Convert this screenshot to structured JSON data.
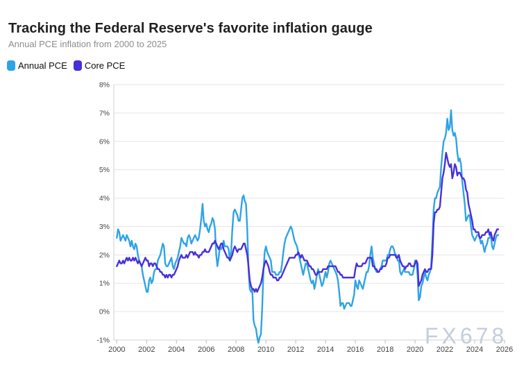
{
  "header": {
    "title": "Tracking the Federal Reserve's favorite inflation gauge",
    "subtitle": "Annual PCE inflation from 2000 to 2025"
  },
  "watermark": "FX678",
  "colors": {
    "annual_pce": "#2EA3E6",
    "core_pce": "#4630D9",
    "grid": "#e5e5e5",
    "axis": "#cfcfcf"
  },
  "chart_data": {
    "type": "line",
    "title": "Tracking the Federal Reserve's favorite inflation gauge",
    "subtitle": "Annual PCE inflation from 2000 to 2025",
    "xlabel": "",
    "ylabel": "",
    "grid": "horizontal",
    "legend_position": "top-left",
    "xlim": [
      2000,
      2026
    ],
    "ylim": [
      -1,
      8
    ],
    "x_ticks": [
      2000,
      2002,
      2004,
      2006,
      2008,
      2010,
      2012,
      2014,
      2016,
      2018,
      2020,
      2022,
      2024,
      2026
    ],
    "y_ticks": [
      8,
      7,
      6,
      5,
      4,
      3,
      2,
      1,
      0,
      -1
    ],
    "y_tick_suffix": "%",
    "x_start_year": 2000,
    "x_interval_months": 1,
    "series": [
      {
        "name": "Annual PCE",
        "color": "#2EA3E6",
        "values": [
          2.6,
          2.9,
          2.8,
          2.5,
          2.6,
          2.7,
          2.6,
          2.5,
          2.7,
          2.6,
          2.5,
          2.3,
          2.5,
          2.3,
          2.2,
          2.4,
          2.3,
          2.0,
          1.8,
          1.7,
          1.6,
          1.3,
          1.1,
          0.9,
          0.7,
          0.7,
          1.1,
          1.2,
          1.0,
          1.1,
          1.4,
          1.5,
          1.5,
          1.8,
          1.9,
          2.0,
          2.2,
          2.4,
          2.3,
          1.7,
          1.6,
          1.6,
          1.7,
          1.8,
          1.9,
          1.6,
          1.5,
          1.7,
          1.8,
          1.9,
          2.1,
          2.3,
          2.6,
          2.5,
          2.4,
          2.4,
          2.3,
          2.6,
          2.7,
          2.6,
          2.4,
          2.5,
          2.6,
          2.7,
          2.6,
          2.5,
          2.6,
          2.9,
          3.3,
          3.8,
          3.2,
          3.0,
          3.1,
          2.9,
          2.8,
          3.0,
          3.1,
          3.3,
          3.2,
          2.9,
          2.0,
          1.6,
          1.9,
          2.3,
          2.2,
          2.3,
          2.5,
          2.3,
          2.3,
          2.3,
          2.2,
          1.8,
          2.1,
          2.9,
          3.5,
          3.6,
          3.5,
          3.4,
          3.2,
          3.2,
          3.6,
          4.0,
          4.1,
          3.9,
          3.8,
          2.9,
          1.5,
          0.8,
          0.7,
          0.8,
          -0.3,
          -0.5,
          -0.6,
          -0.9,
          -1.1,
          -0.9,
          -0.8,
          0.1,
          1.4,
          2.1,
          2.3,
          2.1,
          2.0,
          1.9,
          1.8,
          1.4,
          1.4,
          1.4,
          1.3,
          1.3,
          1.3,
          1.4,
          1.4,
          1.7,
          2.1,
          2.4,
          2.6,
          2.7,
          2.8,
          2.9,
          3.0,
          2.9,
          2.7,
          2.5,
          2.4,
          2.3,
          2.1,
          1.9,
          1.7,
          1.5,
          1.3,
          1.5,
          1.7,
          1.7,
          1.5,
          1.3,
          1.1,
          1.0,
          1.1,
          0.8,
          1.0,
          1.3,
          1.5,
          1.3,
          1.1,
          0.9,
          1.0,
          1.2,
          1.4,
          1.2,
          1.4,
          1.7,
          1.8,
          1.7,
          1.6,
          1.5,
          1.4,
          1.3,
          1.1,
          0.7,
          0.2,
          0.3,
          0.3,
          0.1,
          0.2,
          0.3,
          0.3,
          0.3,
          0.2,
          0.2,
          0.4,
          0.6,
          1.1,
          0.9,
          0.8,
          1.1,
          1.0,
          0.9,
          0.8,
          1.0,
          1.2,
          1.4,
          1.4,
          1.6,
          2.0,
          2.3,
          1.9,
          1.7,
          1.5,
          1.4,
          1.4,
          1.4,
          1.5,
          1.6,
          1.8,
          1.8,
          1.8,
          1.8,
          2.0,
          2.0,
          2.2,
          2.3,
          2.3,
          2.2,
          2.0,
          2.0,
          1.8,
          1.8,
          1.4,
          1.3,
          1.4,
          1.5,
          1.4,
          1.4,
          1.4,
          1.4,
          1.3,
          1.3,
          1.3,
          1.5,
          1.8,
          1.8,
          1.3,
          0.4,
          0.5,
          0.9,
          1.0,
          1.2,
          1.4,
          1.2,
          1.1,
          1.3,
          1.4,
          1.6,
          2.5,
          3.6,
          4.0,
          4.0,
          4.2,
          4.3,
          4.4,
          5.1,
          5.6,
          6.0,
          6.1,
          6.3,
          6.8,
          6.4,
          6.5,
          7.1,
          6.4,
          6.2,
          6.3,
          6.1,
          5.6,
          5.3,
          5.4,
          5.2,
          4.6,
          4.2,
          3.8,
          3.2,
          3.3,
          3.4,
          3.4,
          3.0,
          2.7,
          2.6,
          2.5,
          2.6,
          2.7,
          2.7,
          2.6,
          2.4,
          2.5,
          2.3,
          2.1,
          2.3,
          2.4,
          2.6,
          2.6,
          2.7,
          2.3,
          2.2,
          2.4,
          2.6,
          2.7,
          2.7
        ]
      },
      {
        "name": "Core PCE",
        "color": "#4630D9",
        "values": [
          1.6,
          1.7,
          1.8,
          1.7,
          1.7,
          1.8,
          1.7,
          1.8,
          1.9,
          1.8,
          1.9,
          1.8,
          1.8,
          1.9,
          1.8,
          1.9,
          1.8,
          1.7,
          1.8,
          1.7,
          1.6,
          1.7,
          1.8,
          1.9,
          1.8,
          1.8,
          1.6,
          1.7,
          1.7,
          1.6,
          1.7,
          1.7,
          1.6,
          1.5,
          1.5,
          1.4,
          1.4,
          1.3,
          1.3,
          1.2,
          1.3,
          1.2,
          1.3,
          1.3,
          1.2,
          1.3,
          1.3,
          1.4,
          1.5,
          1.6,
          1.8,
          1.9,
          2.0,
          1.9,
          1.9,
          1.9,
          2.0,
          1.9,
          2.0,
          2.1,
          2.1,
          2.1,
          2.0,
          2.1,
          2.0,
          2.0,
          1.9,
          2.0,
          2.0,
          2.1,
          2.1,
          2.2,
          2.1,
          2.1,
          2.1,
          2.2,
          2.3,
          2.4,
          2.4,
          2.5,
          2.4,
          2.3,
          2.2,
          2.3,
          2.4,
          2.4,
          2.2,
          2.1,
          2.0,
          1.9,
          1.9,
          1.8,
          1.9,
          2.0,
          2.2,
          2.3,
          2.2,
          2.1,
          2.2,
          2.2,
          2.2,
          2.3,
          2.4,
          2.4,
          2.2,
          2.0,
          1.6,
          1.1,
          0.9,
          0.8,
          0.8,
          0.7,
          0.8,
          0.7,
          0.8,
          0.9,
          1.0,
          1.2,
          1.5,
          1.7,
          1.8,
          1.7,
          1.6,
          1.4,
          1.3,
          1.3,
          1.2,
          1.2,
          1.2,
          1.1,
          1.1,
          1.2,
          1.2,
          1.3,
          1.4,
          1.5,
          1.6,
          1.7,
          1.8,
          1.9,
          1.9,
          1.9,
          1.9,
          1.9,
          2.0,
          2.0,
          2.1,
          2.0,
          1.9,
          2.0,
          1.9,
          1.8,
          1.8,
          1.8,
          1.7,
          1.6,
          1.6,
          1.5,
          1.5,
          1.4,
          1.3,
          1.3,
          1.4,
          1.4,
          1.4,
          1.4,
          1.5,
          1.5,
          1.5,
          1.5,
          1.6,
          1.6,
          1.6,
          1.6,
          1.6,
          1.6,
          1.6,
          1.5,
          1.4,
          1.4,
          1.3,
          1.3,
          1.2,
          1.2,
          1.2,
          1.2,
          1.2,
          1.2,
          1.2,
          1.2,
          1.2,
          1.2,
          1.5,
          1.7,
          1.6,
          1.6,
          1.6,
          1.6,
          1.7,
          1.7,
          1.7,
          1.8,
          1.9,
          1.9,
          1.9,
          1.9,
          1.6,
          1.6,
          1.5,
          1.5,
          1.4,
          1.4,
          1.5,
          1.5,
          1.6,
          1.6,
          1.6,
          1.7,
          1.9,
          1.9,
          2.0,
          2.0,
          2.0,
          2.0,
          2.0,
          1.9,
          1.9,
          2.0,
          1.8,
          1.7,
          1.6,
          1.6,
          1.5,
          1.6,
          1.6,
          1.7,
          1.7,
          1.6,
          1.6,
          1.6,
          1.7,
          1.8,
          1.7,
          0.9,
          1.0,
          1.1,
          1.3,
          1.4,
          1.5,
          1.4,
          1.4,
          1.5,
          1.5,
          1.5,
          2.0,
          3.1,
          3.5,
          3.5,
          3.6,
          3.6,
          3.7,
          4.2,
          4.7,
          4.9,
          5.2,
          5.6,
          5.4,
          5.2,
          5.1,
          5.2,
          4.7,
          4.9,
          5.2,
          5.1,
          4.8,
          4.9,
          4.9,
          4.8,
          4.7,
          4.7,
          4.6,
          4.3,
          4.2,
          3.8,
          3.6,
          3.4,
          3.2,
          2.9,
          2.9,
          2.8,
          2.8,
          2.8,
          2.6,
          2.6,
          2.7,
          2.7,
          2.7,
          2.8,
          2.8,
          2.9,
          2.7,
          2.8,
          2.6,
          2.5,
          2.7,
          2.8,
          2.9,
          2.9
        ]
      }
    ]
  }
}
